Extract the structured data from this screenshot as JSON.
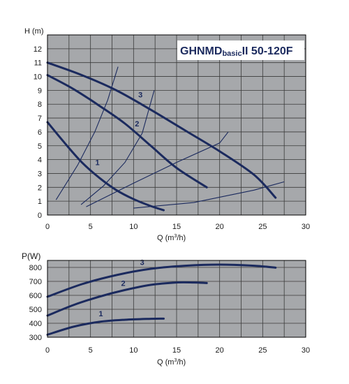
{
  "chart_data": [
    {
      "type": "line",
      "title": "GHNMD",
      "title_sub": "basic",
      "title_tail": "II 50-120F",
      "xlabel": "Q (m",
      "xlabel_sup": "3",
      "xlabel_tail": "/h)",
      "ylabel": "H (m)",
      "xlim": [
        0,
        30
      ],
      "ylim": [
        0,
        13
      ],
      "xticks": [
        "0",
        "5",
        "10",
        "15",
        "20",
        "25",
        "30"
      ],
      "yticks": [
        "0",
        "1",
        "2",
        "3",
        "4",
        "5",
        "6",
        "7",
        "8",
        "9",
        "10",
        "11",
        "12"
      ],
      "grid": true,
      "background": "#a6a8ab",
      "curve_color": "#1b2a5e",
      "series": [
        {
          "name": "1",
          "points": [
            [
              0,
              6.7
            ],
            [
              2,
              5.2
            ],
            [
              4,
              3.8
            ],
            [
              6,
              2.7
            ],
            [
              8,
              1.8
            ],
            [
              10,
              1.15
            ],
            [
              12,
              0.65
            ],
            [
              13.5,
              0.35
            ]
          ]
        },
        {
          "name": "2",
          "points": [
            [
              0,
              10.1
            ],
            [
              3,
              9.1
            ],
            [
              6,
              7.9
            ],
            [
              9,
              6.6
            ],
            [
              12,
              5.0
            ],
            [
              15,
              3.4
            ],
            [
              18.5,
              2.0
            ]
          ]
        },
        {
          "name": "3",
          "points": [
            [
              0,
              11.0
            ],
            [
              4,
              10.1
            ],
            [
              8,
              9.0
            ],
            [
              12,
              7.6
            ],
            [
              16,
              6.1
            ],
            [
              20,
              4.6
            ],
            [
              24,
              2.9
            ],
            [
              26.5,
              1.25
            ]
          ]
        }
      ],
      "system_curves": [
        {
          "points": [
            [
              1,
              1.1
            ],
            [
              3.5,
              3.6
            ],
            [
              5.5,
              6.0
            ],
            [
              7.0,
              8.3
            ],
            [
              8.2,
              10.7
            ]
          ]
        },
        {
          "points": [
            [
              3.9,
              0.75
            ],
            [
              6.5,
              2.1
            ],
            [
              9,
              3.8
            ],
            [
              11,
              5.9
            ],
            [
              12.4,
              9.0
            ]
          ]
        },
        {
          "points": [
            [
              4.5,
              0.6
            ],
            [
              10,
              2.3
            ],
            [
              15,
              3.8
            ],
            [
              20,
              5.2
            ],
            [
              21,
              6.0
            ]
          ]
        },
        {
          "points": [
            [
              10,
              0.5
            ],
            [
              17,
              0.9
            ],
            [
              24,
              1.8
            ],
            [
              27.5,
              2.4
            ]
          ]
        }
      ],
      "label_positions": [
        {
          "text": "1",
          "x": 5.8,
          "y": 3.6
        },
        {
          "text": "2",
          "x": 10.4,
          "y": 6.4
        },
        {
          "text": "3",
          "x": 10.8,
          "y": 8.5
        }
      ]
    },
    {
      "type": "line",
      "xlabel": "Q (m",
      "xlabel_sup": "3",
      "xlabel_tail": "/h)",
      "ylabel": "P(W)",
      "xlim": [
        0,
        30
      ],
      "ylim": [
        300,
        850
      ],
      "xticks": [
        "0",
        "5",
        "10",
        "15",
        "20",
        "25",
        "30"
      ],
      "yticks": [
        "300",
        "400",
        "500",
        "600",
        "700",
        "800"
      ],
      "grid": true,
      "background": "#a6a8ab",
      "curve_color": "#1b2a5e",
      "series": [
        {
          "name": "1",
          "points": [
            [
              0,
              318
            ],
            [
              3,
              375
            ],
            [
              6,
              410
            ],
            [
              9,
              425
            ],
            [
              12,
              432
            ],
            [
              13.5,
              433
            ]
          ]
        },
        {
          "name": "2",
          "points": [
            [
              0,
              455
            ],
            [
              3,
              530
            ],
            [
              6,
              590
            ],
            [
              9,
              638
            ],
            [
              12,
              675
            ],
            [
              15,
              692
            ],
            [
              17,
              692
            ],
            [
              18.5,
              688
            ]
          ]
        },
        {
          "name": "3",
          "points": [
            [
              0,
              590
            ],
            [
              4,
              680
            ],
            [
              8,
              745
            ],
            [
              12,
              790
            ],
            [
              16,
              812
            ],
            [
              20,
              820
            ],
            [
              24,
              812
            ],
            [
              26.5,
              798
            ]
          ]
        }
      ],
      "label_positions": [
        {
          "text": "1",
          "x": 6.2,
          "y": 450
        },
        {
          "text": "2",
          "x": 8.8,
          "y": 668
        },
        {
          "text": "3",
          "x": 11.0,
          "y": 817
        }
      ]
    }
  ]
}
